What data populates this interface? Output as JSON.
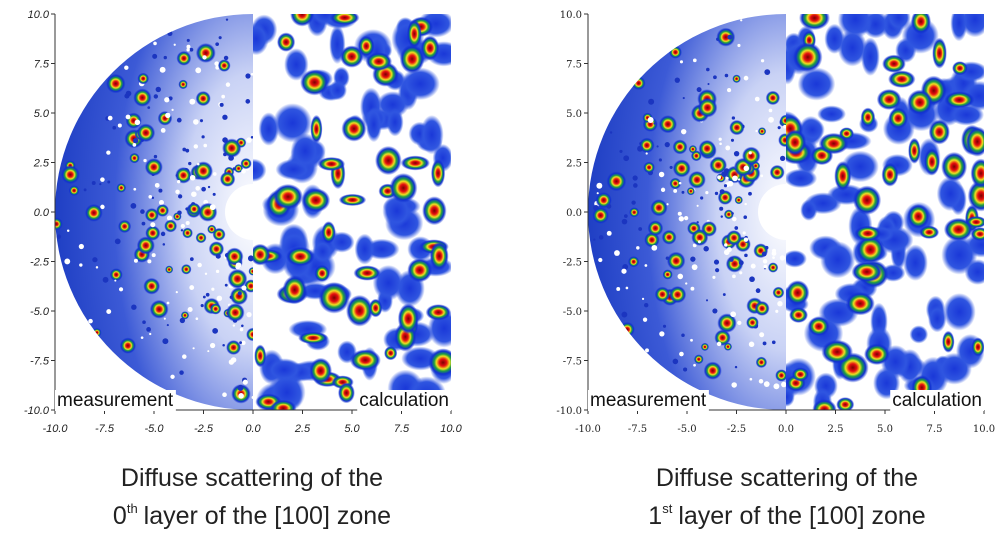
{
  "panels": [
    {
      "xticks": [
        {
          "value": -10,
          "label": "-10.0"
        },
        {
          "value": -7.5,
          "label": "-7.5"
        },
        {
          "value": -5,
          "label": "-5.0"
        },
        {
          "value": -2.5,
          "label": "-2.5"
        },
        {
          "value": 0,
          "label": "0.0"
        },
        {
          "value": 2.5,
          "label": "2.5"
        },
        {
          "value": 5,
          "label": "5.0"
        },
        {
          "value": 7.5,
          "label": "7.5"
        },
        {
          "value": 10,
          "label": "10.0"
        }
      ],
      "yticks": [
        {
          "value": 10,
          "label": "10.0"
        },
        {
          "value": 7.5,
          "label": "7.5"
        },
        {
          "value": 5,
          "label": "5.0"
        },
        {
          "value": 2.5,
          "label": "2.5"
        },
        {
          "value": 0,
          "label": "0.0"
        },
        {
          "value": -2.5,
          "label": "-2.5"
        },
        {
          "value": -5,
          "label": "-5.0"
        },
        {
          "value": -7.5,
          "label": "-7.5"
        },
        {
          "value": -10,
          "label": "-10.0"
        }
      ],
      "left_label": "measurement",
      "right_label": "calculation",
      "caption": {
        "line1": "Diffuse scattering of the",
        "layer": "0",
        "suffix": "th",
        "line2": "layer of the [100] zone"
      }
    },
    {
      "xticks": [
        {
          "value": -10,
          "label": "-10.0"
        },
        {
          "value": -7.5,
          "label": "-7.5"
        },
        {
          "value": -5,
          "label": "-5.0"
        },
        {
          "value": -2.5,
          "label": "-2.5"
        },
        {
          "value": 0,
          "label": "0.0"
        },
        {
          "value": 2.5,
          "label": "2.5"
        },
        {
          "value": 5,
          "label": "5.0"
        },
        {
          "value": 7.5,
          "label": "7.5"
        },
        {
          "value": 10,
          "label": "10.0"
        }
      ],
      "yticks": [
        {
          "value": 10,
          "label": "10.0"
        },
        {
          "value": 7.5,
          "label": "7.5"
        },
        {
          "value": 5,
          "label": "5.0"
        },
        {
          "value": 2.5,
          "label": "2.5"
        },
        {
          "value": 0,
          "label": "0.0"
        },
        {
          "value": -2.5,
          "label": "-2.5"
        },
        {
          "value": -5,
          "label": "-5.0"
        },
        {
          "value": -7.5,
          "label": "-7.5"
        },
        {
          "value": -10,
          "label": "-10.0"
        }
      ],
      "left_label": "measurement",
      "right_label": "calculation",
      "caption": {
        "line1": "Diffuse scattering of the",
        "layer": "1",
        "suffix": "st",
        "line2": "layer of the [100] zone"
      }
    }
  ]
}
